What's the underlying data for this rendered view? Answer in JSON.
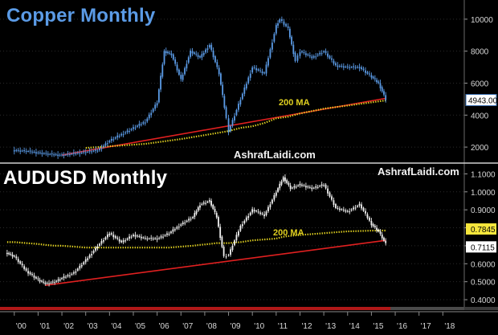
{
  "colors": {
    "copper_price": "#5b9be6",
    "audusd_price": "#f2f2f2",
    "ma_line": "#e0d020",
    "trend_line": "#e02020",
    "axis_text": "#d8d8d8",
    "tag_bg": "#ffffff",
    "tag_ma_bg": "#f6e63c",
    "grid": "#2a2a2a",
    "bottom_strip": "#b01818"
  },
  "chart_data": [
    {
      "type": "line",
      "title": "Copper Monthly",
      "watermark": "AshrafLaidi.com",
      "annotation": "200 MA",
      "last_tag": "4943.00",
      "x": [
        2000.0,
        2000.5,
        2001.0,
        2001.5,
        2002.0,
        2002.5,
        2003.0,
        2003.5,
        2004.0,
        2004.5,
        2005.0,
        2005.5,
        2006.0,
        2006.3,
        2006.6,
        2007.0,
        2007.4,
        2007.8,
        2008.2,
        2008.6,
        2008.9,
        2009.0,
        2009.5,
        2010.0,
        2010.5,
        2011.0,
        2011.15,
        2011.5,
        2011.8,
        2012.0,
        2012.5,
        2013.0,
        2013.5,
        2014.0,
        2014.5,
        2015.0,
        2015.3,
        2015.6
      ],
      "series": [
        {
          "style": "candles",
          "values": [
            1800,
            1750,
            1650,
            1550,
            1500,
            1600,
            1700,
            1800,
            2400,
            2800,
            3200,
            3600,
            4800,
            8000,
            7800,
            6200,
            8000,
            7600,
            8400,
            6600,
            3800,
            3000,
            5000,
            7000,
            6600,
            9600,
            10000,
            9400,
            7400,
            8000,
            7600,
            8000,
            7100,
            7000,
            7000,
            6400,
            6000,
            5000
          ]
        },
        {
          "style": "dotted",
          "values": [
            null,
            null,
            null,
            null,
            null,
            null,
            1950,
            2000,
            2050,
            2100,
            2150,
            2200,
            2300,
            null,
            null,
            2500,
            null,
            null,
            2800,
            null,
            null,
            3000,
            3200,
            3300,
            3500,
            3800,
            null,
            3900,
            null,
            4100,
            4250,
            4400,
            4500,
            4600,
            4700,
            4800,
            4860,
            4920
          ]
        },
        {
          "style": "trend",
          "values": [
            null,
            null,
            null,
            null,
            1500,
            null,
            null,
            null,
            null,
            null,
            null,
            null,
            null,
            null,
            null,
            null,
            null,
            null,
            null,
            null,
            null,
            null,
            null,
            null,
            null,
            null,
            null,
            null,
            null,
            null,
            null,
            null,
            null,
            null,
            null,
            null,
            null,
            5050
          ]
        }
      ],
      "yticks": [
        2000,
        4000,
        6000,
        8000,
        10000
      ],
      "ylim": [
        1000,
        11200
      ],
      "grid": true
    },
    {
      "type": "line",
      "title": "AUDUSD Monthly",
      "watermark": "AshrafLaidi.com",
      "annotation": "200 MA",
      "last_tags": [
        "0.7845",
        "0.7115"
      ],
      "x": [
        1999.7,
        2000.0,
        2000.5,
        2001.0,
        2001.3,
        2001.7,
        2002.0,
        2002.5,
        2003.0,
        2003.5,
        2004.0,
        2004.5,
        2005.0,
        2005.5,
        2006.0,
        2006.5,
        2007.0,
        2007.5,
        2007.8,
        2008.2,
        2008.5,
        2008.8,
        2009.0,
        2009.5,
        2010.0,
        2010.5,
        2011.0,
        2011.3,
        2011.6,
        2012.0,
        2012.5,
        2013.0,
        2013.5,
        2014.0,
        2014.5,
        2015.0,
        2015.3,
        2015.6
      ],
      "series": [
        {
          "style": "candles",
          "values": [
            0.66,
            0.64,
            0.56,
            0.51,
            0.49,
            0.5,
            0.52,
            0.55,
            0.62,
            0.7,
            0.77,
            0.72,
            0.76,
            0.74,
            0.74,
            0.77,
            0.82,
            0.86,
            0.93,
            0.95,
            0.86,
            0.64,
            0.65,
            0.81,
            0.9,
            0.87,
            1.0,
            1.08,
            1.02,
            1.04,
            1.02,
            1.04,
            0.91,
            0.89,
            0.93,
            0.82,
            0.78,
            0.71
          ]
        },
        {
          "style": "dotted",
          "values": [
            0.72,
            0.72,
            0.715,
            0.71,
            0.705,
            0.7,
            0.7,
            0.695,
            0.69,
            0.69,
            0.69,
            0.69,
            0.69,
            0.69,
            0.69,
            0.69,
            0.695,
            0.7,
            0.705,
            0.71,
            0.715,
            0.715,
            0.715,
            0.72,
            0.73,
            0.735,
            0.74,
            0.75,
            0.755,
            0.76,
            0.765,
            0.77,
            0.775,
            0.78,
            0.782,
            0.784,
            0.7845,
            0.7845
          ]
        },
        {
          "style": "trend",
          "values": [
            null,
            null,
            null,
            null,
            0.48,
            null,
            null,
            null,
            null,
            null,
            null,
            null,
            null,
            null,
            null,
            null,
            null,
            null,
            null,
            null,
            null,
            null,
            null,
            null,
            null,
            null,
            null,
            null,
            null,
            null,
            null,
            null,
            null,
            null,
            null,
            null,
            null,
            0.73
          ]
        }
      ],
      "yticks": [
        0.4,
        0.5,
        0.6,
        0.7,
        0.8,
        0.9,
        1.0,
        1.1
      ],
      "ytick_labels": [
        "0.4000",
        "0.5000",
        "0.6000",
        "0.7000",
        "0.8000",
        "0.9000",
        "1.0000",
        "1.1000"
      ],
      "ylim": [
        0.36,
        1.16
      ],
      "grid": true
    }
  ],
  "x_axis": {
    "xlim": [
      1999.4,
      2018.9
    ],
    "ticks": [
      2000,
      2001,
      2002,
      2003,
      2004,
      2005,
      2006,
      2007,
      2008,
      2009,
      2010,
      2011,
      2012,
      2013,
      2014,
      2015,
      2016,
      2017,
      2018
    ],
    "tick_labels": [
      "'00",
      "'01",
      "'02",
      "'03",
      "'04",
      "'05",
      "'06",
      "'07",
      "'08",
      "'09",
      "'10",
      "'11",
      "'12",
      "'13",
      "'14",
      "'15",
      "'16",
      "'17",
      "'18"
    ]
  }
}
